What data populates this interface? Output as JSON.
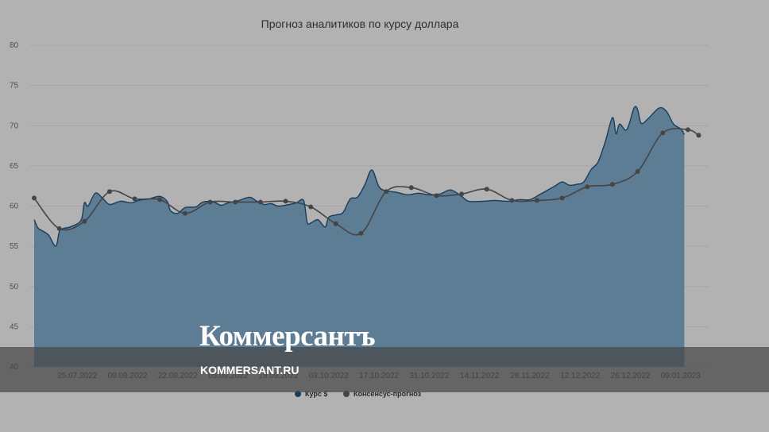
{
  "chart_data": {
    "type": "area",
    "title": "Прогноз аналитиков по курсу доллара",
    "ylim": [
      40,
      80
    ],
    "y_ticks": [
      40,
      45,
      50,
      55,
      60,
      65,
      70,
      75,
      80
    ],
    "x_ticks": [
      "25.07.2022",
      "08.08.2022",
      "22.08.2022",
      "05.09.2022",
      "19.09.2022",
      "03.10.2022",
      "17.10.2022",
      "31.10.2022",
      "14.11.2022",
      "28.11.2022",
      "12.12.2022",
      "26.12.2022",
      "09.01.2023"
    ],
    "grid": true,
    "legend_position": "bottom",
    "series": [
      {
        "name": "Курс $",
        "type": "area",
        "color": "#5c7d93",
        "line_color": "#173d5c",
        "points": [
          [
            "2022-07-13",
            58.3
          ],
          [
            "2022-07-14",
            57.3
          ],
          [
            "2022-07-15",
            57.0
          ],
          [
            "2022-07-17",
            56.4
          ],
          [
            "2022-07-19",
            55.0
          ],
          [
            "2022-07-20",
            56.8
          ],
          [
            "2022-07-21",
            57.2
          ],
          [
            "2022-07-23",
            57.4
          ],
          [
            "2022-07-26",
            58.2
          ],
          [
            "2022-07-27",
            60.4
          ],
          [
            "2022-07-28",
            60.0
          ],
          [
            "2022-07-30",
            61.6
          ],
          [
            "2022-08-01",
            61.0
          ],
          [
            "2022-08-03",
            60.2
          ],
          [
            "2022-08-06",
            60.6
          ],
          [
            "2022-08-09",
            60.4
          ],
          [
            "2022-08-11",
            60.7
          ],
          [
            "2022-08-14",
            60.9
          ],
          [
            "2022-08-17",
            61.2
          ],
          [
            "2022-08-19",
            60.6
          ],
          [
            "2022-08-20",
            59.4
          ],
          [
            "2022-08-22",
            59.1
          ],
          [
            "2022-08-24",
            59.8
          ],
          [
            "2022-08-27",
            59.9
          ],
          [
            "2022-08-29",
            60.5
          ],
          [
            "2022-09-01",
            60.5
          ],
          [
            "2022-09-03",
            60.1
          ],
          [
            "2022-09-05",
            60.4
          ],
          [
            "2022-09-08",
            60.7
          ],
          [
            "2022-09-11",
            61.1
          ],
          [
            "2022-09-13",
            60.6
          ],
          [
            "2022-09-15",
            60.2
          ],
          [
            "2022-09-17",
            60.3
          ],
          [
            "2022-09-19",
            60.0
          ],
          [
            "2022-09-22",
            60.2
          ],
          [
            "2022-09-24",
            60.4
          ],
          [
            "2022-09-26",
            60.7
          ],
          [
            "2022-09-27",
            58.0
          ],
          [
            "2022-09-28",
            57.9
          ],
          [
            "2022-09-30",
            58.3
          ],
          [
            "2022-10-02",
            57.4
          ],
          [
            "2022-10-03",
            58.6
          ],
          [
            "2022-10-05",
            58.9
          ],
          [
            "2022-10-07",
            59.2
          ],
          [
            "2022-10-09",
            60.9
          ],
          [
            "2022-10-11",
            61.1
          ],
          [
            "2022-10-13",
            62.6
          ],
          [
            "2022-10-15",
            64.5
          ],
          [
            "2022-10-17",
            62.4
          ],
          [
            "2022-10-19",
            61.9
          ],
          [
            "2022-10-22",
            61.7
          ],
          [
            "2022-10-25",
            61.4
          ],
          [
            "2022-10-28",
            61.6
          ],
          [
            "2022-10-31",
            61.4
          ],
          [
            "2022-11-03",
            61.5
          ],
          [
            "2022-11-06",
            62.0
          ],
          [
            "2022-11-09",
            61.2
          ],
          [
            "2022-11-11",
            60.6
          ],
          [
            "2022-11-15",
            60.6
          ],
          [
            "2022-11-18",
            60.7
          ],
          [
            "2022-11-22",
            60.6
          ],
          [
            "2022-11-25",
            60.8
          ],
          [
            "2022-11-28",
            60.8
          ],
          [
            "2022-12-01",
            61.5
          ],
          [
            "2022-12-03",
            62.0
          ],
          [
            "2022-12-05",
            62.5
          ],
          [
            "2022-12-07",
            63.0
          ],
          [
            "2022-12-09",
            62.6
          ],
          [
            "2022-12-11",
            62.7
          ],
          [
            "2022-12-13",
            63.0
          ],
          [
            "2022-12-15",
            64.5
          ],
          [
            "2022-12-17",
            65.5
          ],
          [
            "2022-12-19",
            68.0
          ],
          [
            "2022-12-21",
            71.0
          ],
          [
            "2022-12-22",
            69.0
          ],
          [
            "2022-12-23",
            70.2
          ],
          [
            "2022-12-25",
            69.5
          ],
          [
            "2022-12-27",
            72.2
          ],
          [
            "2022-12-28",
            72.0
          ],
          [
            "2022-12-29",
            70.3
          ],
          [
            "2022-12-31",
            70.9
          ],
          [
            "2023-01-03",
            72.2
          ],
          [
            "2023-01-05",
            71.8
          ],
          [
            "2023-01-07",
            70.2
          ],
          [
            "2023-01-09",
            69.6
          ],
          [
            "2023-01-10",
            68.9
          ]
        ]
      },
      {
        "name": "Консенсус-прогноз",
        "type": "line",
        "color": "#454545",
        "points": [
          [
            "2022-07-13",
            61.0
          ],
          [
            "2022-07-20",
            57.2
          ],
          [
            "2022-07-27",
            58.1
          ],
          [
            "2022-08-03",
            61.8
          ],
          [
            "2022-08-10",
            60.9
          ],
          [
            "2022-08-17",
            60.8
          ],
          [
            "2022-08-24",
            59.1
          ],
          [
            "2022-08-31",
            60.5
          ],
          [
            "2022-09-07",
            60.5
          ],
          [
            "2022-09-14",
            60.5
          ],
          [
            "2022-09-21",
            60.6
          ],
          [
            "2022-09-28",
            59.9
          ],
          [
            "2022-10-05",
            57.8
          ],
          [
            "2022-10-12",
            56.6
          ],
          [
            "2022-10-19",
            61.8
          ],
          [
            "2022-10-26",
            62.3
          ],
          [
            "2022-11-02",
            61.3
          ],
          [
            "2022-11-09",
            61.5
          ],
          [
            "2022-11-16",
            62.1
          ],
          [
            "2022-11-23",
            60.7
          ],
          [
            "2022-11-30",
            60.7
          ],
          [
            "2022-12-07",
            61.0
          ],
          [
            "2022-12-14",
            62.4
          ],
          [
            "2022-12-21",
            62.7
          ],
          [
            "2022-12-28",
            64.3
          ],
          [
            "2023-01-04",
            69.1
          ],
          [
            "2023-01-11",
            69.5
          ],
          [
            "2023-01-14",
            68.8
          ]
        ]
      }
    ]
  },
  "watermark": {
    "brand": "Коммерсантъ",
    "url": "KOMMERSANT.RU"
  }
}
